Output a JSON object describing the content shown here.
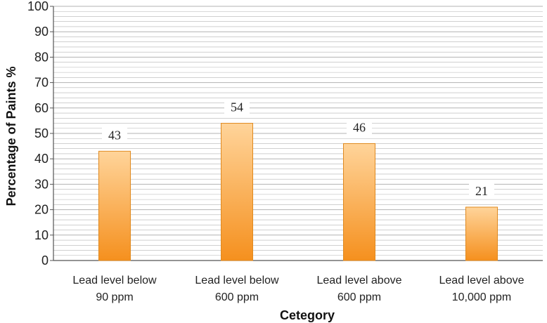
{
  "chart_data": {
    "type": "bar",
    "categories": [
      [
        "Lead level below",
        "90 ppm"
      ],
      [
        "Lead level below",
        "600 ppm"
      ],
      [
        "Lead level above",
        "600 ppm"
      ],
      [
        "Lead level above",
        "10,000 ppm"
      ]
    ],
    "values": [
      43,
      54,
      46,
      21
    ],
    "data_labels": [
      "43",
      "54",
      "46",
      "21"
    ],
    "xlabel": "Cetegory",
    "ylabel": "Percentage of Paints %",
    "ylim": [
      0,
      100
    ],
    "yticks": [
      0,
      10,
      20,
      30,
      40,
      50,
      60,
      70,
      80,
      90,
      100
    ],
    "grid": true,
    "bar_color_top": "#ffd49a",
    "bar_color_bottom": "#f5901e",
    "bar_border": "#e08a20",
    "grid_color": "#b3b3b3"
  }
}
